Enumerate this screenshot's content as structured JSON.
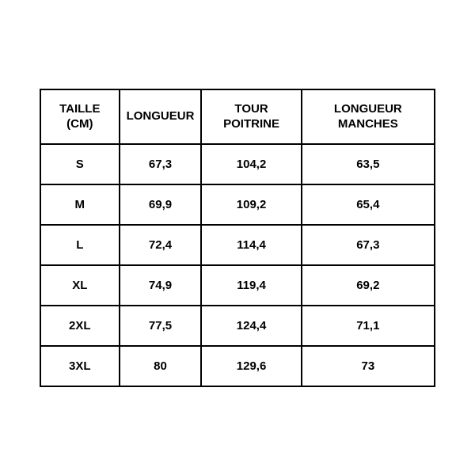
{
  "size_table": {
    "type": "table",
    "border_color": "#000000",
    "border_width": 2,
    "background_color": "#ffffff",
    "text_color": "#000000",
    "font_weight": "bold",
    "header_fontsize": 15,
    "cell_fontsize": 15,
    "columns": [
      "TAILLE (CM)",
      "LONGUEUR",
      "TOUR POITRINE",
      "LONGUEUR MANCHES"
    ],
    "rows": [
      [
        "S",
        "67,3",
        "104,2",
        "63,5"
      ],
      [
        "M",
        "69,9",
        "109,2",
        "65,4"
      ],
      [
        "L",
        "72,4",
        "114,4",
        "67,3"
      ],
      [
        "XL",
        "74,9",
        "119,4",
        "69,2"
      ],
      [
        "2XL",
        "77,5",
        "124,4",
        "71,1"
      ],
      [
        "3XL",
        "80",
        "129,6",
        "73"
      ]
    ]
  }
}
